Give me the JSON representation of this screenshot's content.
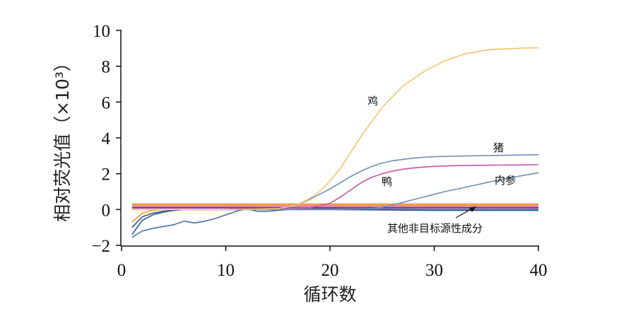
{
  "chart_data": {
    "type": "line",
    "title": "",
    "xlabel": "循环数",
    "ylabel": "相对荧光值（×10³）",
    "xlim": [
      0,
      40
    ],
    "ylim": [
      -2,
      10
    ],
    "xticks": [
      "0",
      "10",
      "20",
      "30",
      "40"
    ],
    "yticks": [
      "−2",
      "0",
      "2",
      "4",
      "6",
      "8",
      "10"
    ],
    "grid": false,
    "series": [
      {
        "name": "鸡",
        "color": "#f2c46a",
        "label": "鸡",
        "x": [
          1,
          5,
          10,
          15,
          16,
          17,
          18,
          19,
          20,
          21,
          22,
          23,
          24,
          25,
          26,
          27,
          28,
          29,
          30,
          31,
          32,
          33,
          34,
          35,
          36,
          37,
          38,
          39,
          40
        ],
        "y": [
          0,
          0,
          0,
          0.05,
          0.15,
          0.3,
          0.6,
          1.0,
          1.6,
          2.3,
          3.2,
          4.1,
          4.9,
          5.7,
          6.3,
          6.9,
          7.3,
          7.7,
          8.0,
          8.3,
          8.5,
          8.7,
          8.8,
          8.9,
          8.95,
          8.97,
          9.0,
          9.02,
          9.03
        ]
      },
      {
        "name": "猪",
        "color": "#6f8fb8",
        "label": "猪",
        "x": [
          1,
          5,
          10,
          15,
          16,
          17,
          18,
          19,
          20,
          21,
          22,
          23,
          24,
          25,
          26,
          27,
          28,
          29,
          30,
          32,
          34,
          36,
          38,
          40
        ],
        "y": [
          0,
          0,
          0,
          0.05,
          0.15,
          0.3,
          0.55,
          0.85,
          1.15,
          1.5,
          1.85,
          2.15,
          2.4,
          2.6,
          2.72,
          2.8,
          2.87,
          2.92,
          2.95,
          2.98,
          3.0,
          3.02,
          3.04,
          3.06
        ]
      },
      {
        "name": "鸭",
        "color": "#c453a6",
        "label": "鸭",
        "x": [
          1,
          10,
          18,
          19,
          20,
          21,
          22,
          23,
          24,
          25,
          26,
          27,
          28,
          29,
          30,
          32,
          34,
          36,
          38,
          40
        ],
        "y": [
          0,
          0,
          0.1,
          0.2,
          0.35,
          0.7,
          1.1,
          1.5,
          1.8,
          2.0,
          2.15,
          2.25,
          2.32,
          2.37,
          2.41,
          2.45,
          2.47,
          2.48,
          2.49,
          2.5
        ]
      },
      {
        "name": "内参",
        "color": "#6f8fb8",
        "label": "内参",
        "x": [
          1,
          10,
          20,
          24,
          25,
          26,
          27,
          28,
          29,
          30,
          31,
          32,
          33,
          34,
          35,
          36,
          37,
          38,
          39,
          40
        ],
        "y": [
          0,
          0,
          0,
          0.05,
          0.12,
          0.25,
          0.4,
          0.55,
          0.7,
          0.85,
          1.0,
          1.12,
          1.25,
          1.37,
          1.5,
          1.62,
          1.75,
          1.85,
          1.95,
          2.05
        ]
      },
      {
        "name": "其他非目标源性成分",
        "color": "#2e5691",
        "x": [
          1,
          2,
          3,
          4,
          5,
          6,
          10,
          20,
          30,
          40
        ],
        "y": [
          -1.4,
          -0.6,
          -0.3,
          -0.15,
          -0.05,
          0,
          0,
          0,
          -0.05,
          -0.05
        ]
      },
      {
        "name": "其他非目标源性成分-2",
        "color": "#4a72a8",
        "x": [
          1,
          2,
          3,
          4,
          5,
          6,
          7,
          8,
          9,
          10,
          11,
          12,
          13,
          14,
          15,
          16,
          17,
          18,
          20,
          30,
          40
        ],
        "y": [
          -1.55,
          -1.2,
          -1.05,
          -0.95,
          -0.85,
          -0.65,
          -0.75,
          -0.65,
          -0.5,
          -0.3,
          -0.1,
          0.05,
          -0.1,
          -0.1,
          -0.05,
          0,
          0,
          0,
          0,
          0,
          -0.02
        ]
      },
      {
        "name": "其他非目标源性成分-3",
        "color": "#2e5691",
        "x": [
          1,
          2,
          3,
          4,
          5,
          6,
          8,
          10,
          20,
          30,
          40
        ],
        "y": [
          -1.0,
          -0.4,
          -0.2,
          -0.1,
          -0.05,
          0,
          0,
          0,
          0.02,
          0,
          0
        ]
      },
      {
        "name": "其他非目标源性成分-4",
        "color": "#f29a2e",
        "x": [
          1,
          2,
          3,
          4,
          40
        ],
        "y": [
          -0.7,
          -0.2,
          -0.05,
          0,
          0
        ]
      }
    ],
    "threshold_lines": [
      {
        "y": 0.3,
        "color": "#f29a2e"
      },
      {
        "y": 0.2,
        "color": "#e27a9e"
      },
      {
        "y": 0.1,
        "color": "#7a2a88"
      }
    ],
    "annotations": [
      {
        "text": "其他非目标源性成分",
        "arrow_to": [
          34,
          0.05
        ]
      }
    ]
  }
}
